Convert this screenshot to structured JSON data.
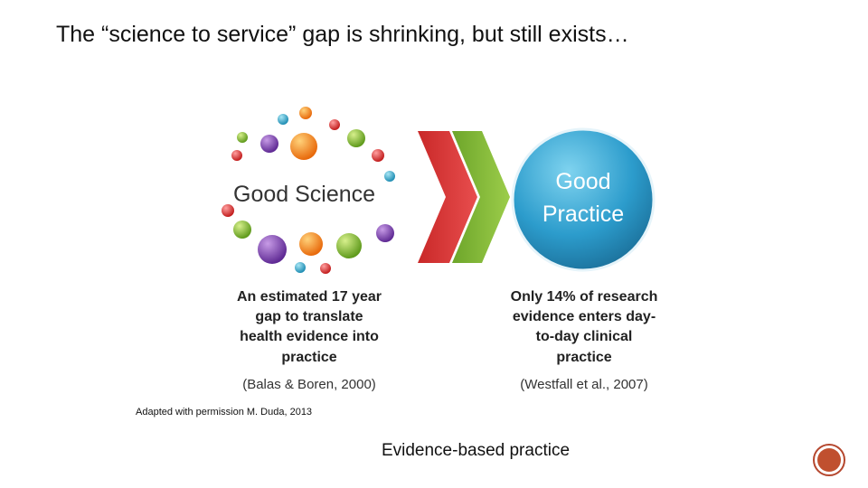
{
  "title": "The “science to service” gap is shrinking, but still exists…",
  "diagram": {
    "left_label": "Good Science",
    "right_label": [
      "Good",
      "Practice"
    ],
    "left_caption": [
      "An estimated 17 year",
      "gap to translate",
      "health evidence into",
      "practice"
    ],
    "left_citation": "(Balas & Boren, 2000)",
    "right_caption": [
      "Only 14% of research",
      "evidence enters day-",
      "to-day clinical",
      "practice"
    ],
    "right_citation": "(Westfall et al., 2007)"
  },
  "attribution": "Adapted with permission M. Duda, 2013",
  "footer": "Evidence-based practice"
}
